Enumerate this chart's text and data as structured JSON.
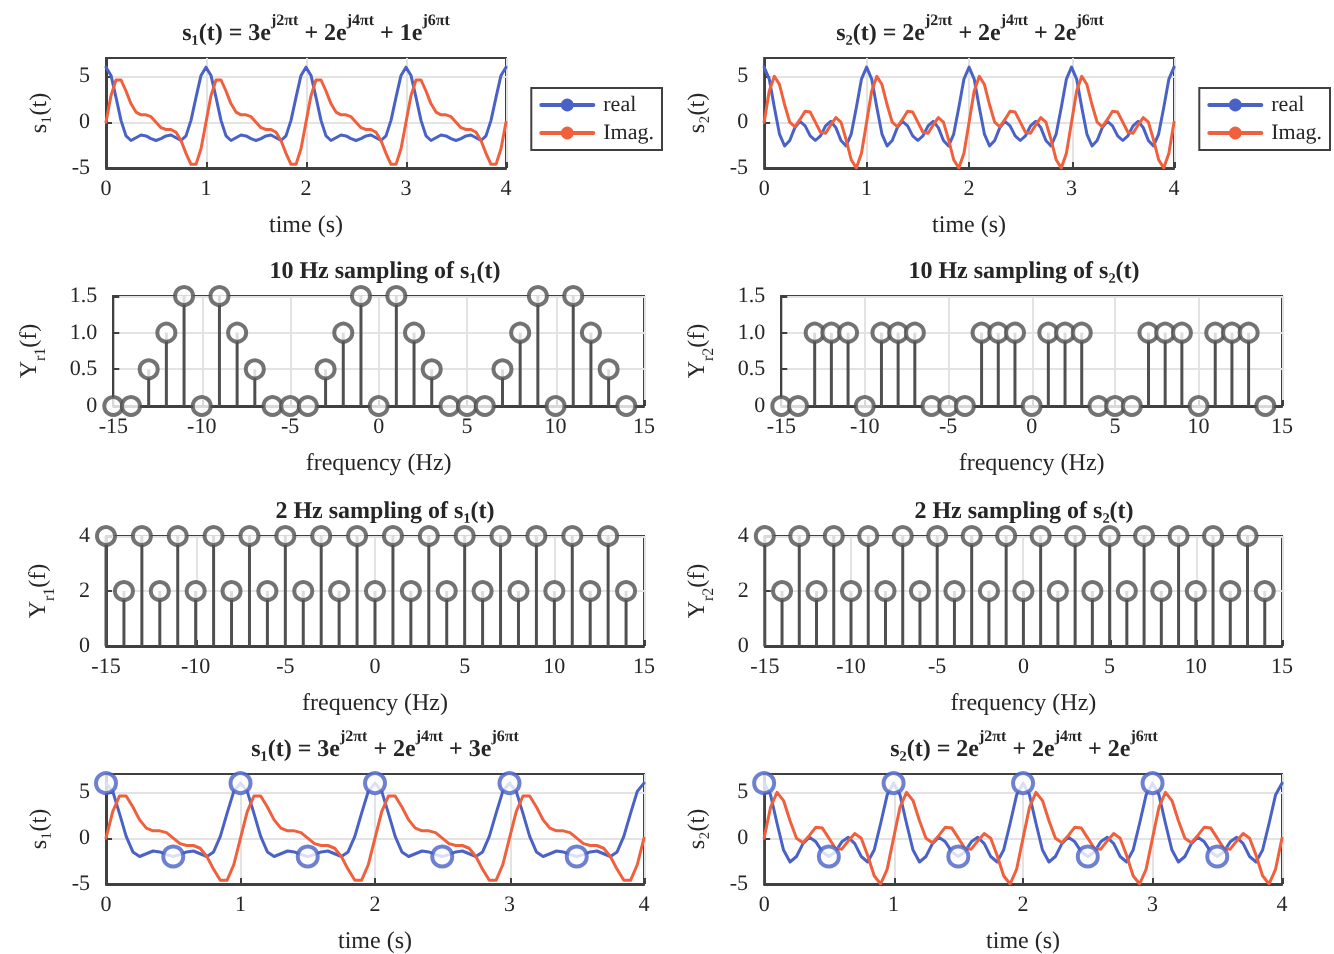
{
  "chart_data": [
    {
      "type": "line",
      "title": "s₁(t) = 3e$^{j2πt}$ + 2e$^{j4πt}$ + 1e$^{j6πt}$",
      "xlabel": "time (s)",
      "ylabel": "s₁(t)",
      "xlim": [
        0,
        4
      ],
      "xticks": [
        0,
        1,
        2,
        3,
        4
      ],
      "ylim": [
        -5,
        7
      ],
      "yticks": [
        -5,
        0,
        5
      ],
      "grid": true,
      "legend": "right",
      "marker": "none",
      "x": [
        0,
        0.05,
        0.1,
        0.15,
        0.2,
        0.25,
        0.3,
        0.35,
        0.4,
        0.45,
        0.5,
        0.55,
        0.6,
        0.65,
        0.7,
        0.75,
        0.8,
        0.85,
        0.9,
        0.95,
        1,
        1.05,
        1.1,
        1.15,
        1.2,
        1.25,
        1.3,
        1.35,
        1.4,
        1.45,
        1.5,
        1.55,
        1.6,
        1.65,
        1.7,
        1.75,
        1.8,
        1.85,
        1.9,
        1.95,
        2,
        2.05,
        2.1,
        2.15,
        2.2,
        2.25,
        2.3,
        2.35,
        2.4,
        2.45,
        2.5,
        2.55,
        2.6,
        2.65,
        2.7,
        2.75,
        2.8,
        2.85,
        2.9,
        2.95,
        3,
        3.05,
        3.1,
        3.15,
        3.2,
        3.25,
        3.3,
        3.35,
        3.4,
        3.45,
        3.5,
        3.55,
        3.6,
        3.65,
        3.7,
        3.75,
        3.8,
        3.85,
        3.9,
        3.95,
        4
      ],
      "series": [
        {
          "name": "real",
          "color": "#4a62c6",
          "values": [
            6,
            5.1,
            2.7,
            0.2,
            -1.5,
            -2,
            -1.7,
            -1.4,
            -1.5,
            -1.8,
            -2,
            -1.8,
            -1.5,
            -1.4,
            -1.7,
            -2,
            -1.5,
            0.2,
            2.7,
            5.1,
            6,
            5.1,
            2.7,
            0.2,
            -1.5,
            -2,
            -1.7,
            -1.4,
            -1.5,
            -1.8,
            -2,
            -1.8,
            -1.5,
            -1.4,
            -1.7,
            -2,
            -1.5,
            0.2,
            2.7,
            5.1,
            6,
            5.1,
            2.7,
            0.2,
            -1.5,
            -2,
            -1.7,
            -1.4,
            -1.5,
            -1.8,
            -2,
            -1.8,
            -1.5,
            -1.4,
            -1.7,
            -2,
            -1.5,
            0.2,
            2.7,
            5.1,
            6,
            5.1,
            2.7,
            0.2,
            -1.5,
            -2,
            -1.7,
            -1.4,
            -1.5,
            -1.8,
            -2,
            -1.8,
            -1.5,
            -1.4,
            -1.7,
            -2,
            -1.5,
            0.2,
            2.7,
            5.1,
            6
          ]
        },
        {
          "name": "Imag.",
          "color": "#f0603c",
          "values": [
            0,
            2.9,
            4.6,
            4.6,
            3.4,
            2,
            1.1,
            0.8,
            0.8,
            0.6,
            0,
            -0.6,
            -0.8,
            -0.8,
            -1.1,
            -2,
            -3.4,
            -4.6,
            -4.6,
            -2.9,
            0,
            2.9,
            4.6,
            4.6,
            3.4,
            2,
            1.1,
            0.8,
            0.8,
            0.6,
            0,
            -0.6,
            -0.8,
            -0.8,
            -1.1,
            -2,
            -3.4,
            -4.6,
            -4.6,
            -2.9,
            0,
            2.9,
            4.6,
            4.6,
            3.4,
            2,
            1.1,
            0.8,
            0.8,
            0.6,
            0,
            -0.6,
            -0.8,
            -0.8,
            -1.1,
            -2,
            -3.4,
            -4.6,
            -4.6,
            -2.9,
            0,
            2.9,
            4.6,
            4.6,
            3.4,
            2,
            1.1,
            0.8,
            0.8,
            0.6,
            0,
            -0.6,
            -0.8,
            -0.8,
            -1.1,
            -2,
            -3.4,
            -4.6,
            -4.6,
            -2.9,
            0
          ]
        }
      ]
    },
    {
      "type": "line",
      "title": "s₂(t) = 2e$^{j2πt}$ + 2e$^{j4πt}$ + 2e$^{j6πt}$",
      "xlabel": "time (s)",
      "ylabel": "s₂(t)",
      "xlim": [
        0,
        4
      ],
      "xticks": [
        0,
        1,
        2,
        3,
        4
      ],
      "ylim": [
        -5,
        7
      ],
      "yticks": [
        -5,
        0,
        5
      ],
      "grid": true,
      "legend": "right",
      "marker": "none",
      "x": [
        0,
        0.05,
        0.1,
        0.15,
        0.2,
        0.25,
        0.3,
        0.35,
        0.4,
        0.45,
        0.5,
        0.55,
        0.6,
        0.65,
        0.7,
        0.75,
        0.8,
        0.85,
        0.9,
        0.95,
        1,
        1.05,
        1.1,
        1.15,
        1.2,
        1.25,
        1.3,
        1.35,
        1.4,
        1.45,
        1.5,
        1.55,
        1.6,
        1.65,
        1.7,
        1.75,
        1.8,
        1.85,
        1.9,
        1.95,
        2,
        2.05,
        2.1,
        2.15,
        2.2,
        2.25,
        2.3,
        2.35,
        2.4,
        2.45,
        2.5,
        2.55,
        2.6,
        2.65,
        2.7,
        2.75,
        2.8,
        2.85,
        2.9,
        2.95,
        3,
        3.05,
        3.1,
        3.15,
        3.2,
        3.25,
        3.3,
        3.35,
        3.4,
        3.45,
        3.5,
        3.55,
        3.6,
        3.65,
        3.7,
        3.75,
        3.8,
        3.85,
        3.9,
        3.95,
        4
      ],
      "series": [
        {
          "name": "real",
          "color": "#4a62c6",
          "values": [
            6,
            4.7,
            1.6,
            -1.3,
            -2.6,
            -2,
            -0.6,
            0.1,
            -0.4,
            -1.5,
            -2,
            -1.5,
            -0.4,
            0.1,
            -0.6,
            -2,
            -2.6,
            -1.3,
            1.6,
            4.7,
            6,
            4.7,
            1.6,
            -1.3,
            -2.6,
            -2,
            -0.6,
            0.1,
            -0.4,
            -1.5,
            -2,
            -1.5,
            -0.4,
            0.1,
            -0.6,
            -2,
            -2.6,
            -1.3,
            1.6,
            4.7,
            6,
            4.7,
            1.6,
            -1.3,
            -2.6,
            -2,
            -0.6,
            0.1,
            -0.4,
            -1.5,
            -2,
            -1.5,
            -0.4,
            0.1,
            -0.6,
            -2,
            -2.6,
            -1.3,
            1.6,
            4.7,
            6,
            4.7,
            1.6,
            -1.3,
            -2.6,
            -2,
            -0.6,
            0.1,
            -0.4,
            -1.5,
            -2,
            -1.5,
            -0.4,
            0.1,
            -0.6,
            -2,
            -2.6,
            -1.3,
            1.6,
            4.7,
            6
          ]
        },
        {
          "name": "Imag.",
          "color": "#f0603c",
          "values": [
            0,
            3.4,
            5,
            4.1,
            1.9,
            0,
            -0.5,
            0.3,
            1.2,
            1.1,
            0,
            -1.1,
            -1.2,
            -0.3,
            0.5,
            0,
            -1.9,
            -4.1,
            -5,
            -3.4,
            0,
            3.4,
            5,
            4.1,
            1.9,
            0,
            -0.5,
            0.3,
            1.2,
            1.1,
            0,
            -1.1,
            -1.2,
            -0.3,
            0.5,
            0,
            -1.9,
            -4.1,
            -5,
            -3.4,
            0,
            3.4,
            5,
            4.1,
            1.9,
            0,
            -0.5,
            0.3,
            1.2,
            1.1,
            0,
            -1.1,
            -1.2,
            -0.3,
            0.5,
            0,
            -1.9,
            -4.1,
            -5,
            -3.4,
            0,
            3.4,
            5,
            4.1,
            1.9,
            0,
            -0.5,
            0.3,
            1.2,
            1.1,
            0,
            -1.1,
            -1.2,
            -0.3,
            0.5,
            0,
            -1.9,
            -4.1,
            -5,
            -3.4,
            0
          ]
        }
      ]
    },
    {
      "type": "lollipop",
      "title": "10 Hz sampling of s₁(t)",
      "xlabel": "frequency (Hz)",
      "ylabel": "Y$_{r1}$(f)",
      "xlim": [
        -15,
        15
      ],
      "xticks": [
        -15,
        -10,
        -5,
        0,
        5,
        10,
        15
      ],
      "ylim": [
        0,
        1.5
      ],
      "yticks": [
        0,
        0.5,
        {
          "value": 1,
          "label": "1.0"
        },
        1.5
      ],
      "grid": true,
      "marker": "circle",
      "color": "#505050",
      "x": [
        -15,
        -14,
        -13,
        -12,
        -11,
        -10,
        -9,
        -8,
        -7,
        -6,
        -5,
        -4,
        -3,
        -2,
        -1,
        0,
        1,
        2,
        3,
        4,
        5,
        6,
        7,
        8,
        9,
        10,
        11,
        12,
        13,
        14
      ],
      "values": [
        0,
        0,
        0.5,
        1,
        1.5,
        0,
        1.5,
        1,
        0.5,
        0,
        0,
        0,
        0.5,
        1,
        1.5,
        0,
        1.5,
        1,
        0.5,
        0,
        0,
        0,
        0.5,
        1,
        1.5,
        0,
        1.5,
        1,
        0.5,
        0
      ]
    },
    {
      "type": "lollipop",
      "title": "10 Hz sampling of s₂(t)",
      "xlabel": "frequency (Hz)",
      "ylabel": "Y$_{r2}$(f)",
      "xlim": [
        -15,
        15
      ],
      "xticks": [
        -15,
        -10,
        -5,
        0,
        5,
        10,
        15
      ],
      "ylim": [
        0,
        1.5
      ],
      "yticks": [
        0,
        0.5,
        {
          "value": 1,
          "label": "1.0"
        },
        1.5
      ],
      "grid": true,
      "marker": "circle",
      "color": "#505050",
      "x": [
        -15,
        -14,
        -13,
        -12,
        -11,
        -10,
        -9,
        -8,
        -7,
        -6,
        -5,
        -4,
        -3,
        -2,
        -1,
        0,
        1,
        2,
        3,
        4,
        5,
        6,
        7,
        8,
        9,
        10,
        11,
        12,
        13,
        14
      ],
      "values": [
        0,
        0,
        1,
        1,
        1,
        0,
        1,
        1,
        1,
        0,
        0,
        0,
        1,
        1,
        1,
        0,
        1,
        1,
        1,
        0,
        0,
        0,
        1,
        1,
        1,
        0,
        1,
        1,
        1,
        0
      ]
    },
    {
      "type": "lollipop",
      "title": "2 Hz sampling of s₁(t)",
      "xlabel": "frequency (Hz)",
      "ylabel": "Y$_{r1}$(f)",
      "xlim": [
        -15,
        15
      ],
      "xticks": [
        -15,
        -10,
        -5,
        0,
        5,
        10,
        15
      ],
      "ylim": [
        0,
        4
      ],
      "yticks": [
        0,
        2,
        4
      ],
      "grid": true,
      "marker": "circle",
      "color": "#505050",
      "x": [
        -15,
        -14,
        -13,
        -12,
        -11,
        -10,
        -9,
        -8,
        -7,
        -6,
        -5,
        -4,
        -3,
        -2,
        -1,
        0,
        1,
        2,
        3,
        4,
        5,
        6,
        7,
        8,
        9,
        10,
        11,
        12,
        13,
        14
      ],
      "values": [
        4,
        2,
        4,
        2,
        4,
        2,
        4,
        2,
        4,
        2,
        4,
        2,
        4,
        2,
        4,
        2,
        4,
        2,
        4,
        2,
        4,
        2,
        4,
        2,
        4,
        2,
        4,
        2,
        4,
        2
      ]
    },
    {
      "type": "lollipop",
      "title": "2 Hz sampling of s₂(t)",
      "xlabel": "frequency (Hz)",
      "ylabel": "Y$_{r2}$(f)",
      "xlim": [
        -15,
        15
      ],
      "xticks": [
        -15,
        -10,
        -5,
        0,
        5,
        10,
        15
      ],
      "ylim": [
        0,
        4
      ],
      "yticks": [
        0,
        2,
        4
      ],
      "grid": true,
      "marker": "circle",
      "color": "#505050",
      "x": [
        -15,
        -14,
        -13,
        -12,
        -11,
        -10,
        -9,
        -8,
        -7,
        -6,
        -5,
        -4,
        -3,
        -2,
        -1,
        0,
        1,
        2,
        3,
        4,
        5,
        6,
        7,
        8,
        9,
        10,
        11,
        12,
        13,
        14
      ],
      "values": [
        4,
        2,
        4,
        2,
        4,
        2,
        4,
        2,
        4,
        2,
        4,
        2,
        4,
        2,
        4,
        2,
        4,
        2,
        4,
        2,
        4,
        2,
        4,
        2,
        4,
        2,
        4,
        2,
        4,
        2
      ]
    },
    {
      "type": "line",
      "title": "s₁(t) = 3e$^{j2πt}$ + 2e$^{j4πt}$ + 3e$^{j6πt}$",
      "xlabel": "time (s)",
      "ylabel": "s₁(t)",
      "xlim": [
        0,
        4
      ],
      "xticks": [
        0,
        1,
        2,
        3,
        4
      ],
      "ylim": [
        -5,
        7
      ],
      "yticks": [
        -5,
        0,
        5
      ],
      "grid": true,
      "marker": "none",
      "x": [
        0,
        0.05,
        0.1,
        0.15,
        0.2,
        0.25,
        0.3,
        0.35,
        0.4,
        0.45,
        0.5,
        0.55,
        0.6,
        0.65,
        0.7,
        0.75,
        0.8,
        0.85,
        0.9,
        0.95,
        1,
        1.05,
        1.1,
        1.15,
        1.2,
        1.25,
        1.3,
        1.35,
        1.4,
        1.45,
        1.5,
        1.55,
        1.6,
        1.65,
        1.7,
        1.75,
        1.8,
        1.85,
        1.9,
        1.95,
        2,
        2.05,
        2.1,
        2.15,
        2.2,
        2.25,
        2.3,
        2.35,
        2.4,
        2.45,
        2.5,
        2.55,
        2.6,
        2.65,
        2.7,
        2.75,
        2.8,
        2.85,
        2.9,
        2.95,
        3,
        3.05,
        3.1,
        3.15,
        3.2,
        3.25,
        3.3,
        3.35,
        3.4,
        3.45,
        3.5,
        3.55,
        3.6,
        3.65,
        3.7,
        3.75,
        3.8,
        3.85,
        3.9,
        3.95,
        4
      ],
      "series": [
        {
          "color": "#4a62c6",
          "values": [
            6,
            5.1,
            2.7,
            0.2,
            -1.5,
            -2,
            -1.7,
            -1.4,
            -1.5,
            -1.8,
            -2,
            -1.8,
            -1.5,
            -1.4,
            -1.7,
            -2,
            -1.5,
            0.2,
            2.7,
            5.1,
            6,
            5.1,
            2.7,
            0.2,
            -1.5,
            -2,
            -1.7,
            -1.4,
            -1.5,
            -1.8,
            -2,
            -1.8,
            -1.5,
            -1.4,
            -1.7,
            -2,
            -1.5,
            0.2,
            2.7,
            5.1,
            6,
            5.1,
            2.7,
            0.2,
            -1.5,
            -2,
            -1.7,
            -1.4,
            -1.5,
            -1.8,
            -2,
            -1.8,
            -1.5,
            -1.4,
            -1.7,
            -2,
            -1.5,
            0.2,
            2.7,
            5.1,
            6,
            5.1,
            2.7,
            0.2,
            -1.5,
            -2,
            -1.7,
            -1.4,
            -1.5,
            -1.8,
            -2,
            -1.8,
            -1.5,
            -1.4,
            -1.7,
            -2,
            -1.5,
            0.2,
            2.7,
            5.1,
            6
          ]
        },
        {
          "color": "#f0603c",
          "values": [
            0,
            2.9,
            4.6,
            4.6,
            3.4,
            2,
            1.1,
            0.8,
            0.8,
            0.6,
            0,
            -0.6,
            -0.8,
            -0.8,
            -1.1,
            -2,
            -3.4,
            -4.6,
            -4.6,
            -2.9,
            0,
            2.9,
            4.6,
            4.6,
            3.4,
            2,
            1.1,
            0.8,
            0.8,
            0.6,
            0,
            -0.6,
            -0.8,
            -0.8,
            -1.1,
            -2,
            -3.4,
            -4.6,
            -4.6,
            -2.9,
            0,
            2.9,
            4.6,
            4.6,
            3.4,
            2,
            1.1,
            0.8,
            0.8,
            0.6,
            0,
            -0.6,
            -0.8,
            -0.8,
            -1.1,
            -2,
            -3.4,
            -4.6,
            -4.6,
            -2.9,
            0,
            2.9,
            4.6,
            4.6,
            3.4,
            2,
            1.1,
            0.8,
            0.8,
            0.6,
            0,
            -0.6,
            -0.8,
            -0.8,
            -1.1,
            -2,
            -3.4,
            -4.6,
            -4.6,
            -2.9,
            0
          ]
        },
        {
          "type": "scatter",
          "marker": "circle",
          "color": "#4a62c6",
          "x": [
            0,
            0.5,
            1,
            1.5,
            2,
            2.5,
            3,
            3.5
          ],
          "values": [
            6,
            -2,
            6,
            -2,
            6,
            -2,
            6,
            -2
          ]
        }
      ]
    },
    {
      "type": "line",
      "title": "s₂(t) = 2e$^{j2πt}$ + 2e$^{j4πt}$ + 2e$^{j6πt}$",
      "xlabel": "time (s)",
      "ylabel": "s₂(t)",
      "xlim": [
        0,
        4
      ],
      "xticks": [
        0,
        1,
        2,
        3,
        4
      ],
      "ylim": [
        -5,
        7
      ],
      "yticks": [
        -5,
        0,
        5
      ],
      "grid": true,
      "marker": "none",
      "x": [
        0,
        0.05,
        0.1,
        0.15,
        0.2,
        0.25,
        0.3,
        0.35,
        0.4,
        0.45,
        0.5,
        0.55,
        0.6,
        0.65,
        0.7,
        0.75,
        0.8,
        0.85,
        0.9,
        0.95,
        1,
        1.05,
        1.1,
        1.15,
        1.2,
        1.25,
        1.3,
        1.35,
        1.4,
        1.45,
        1.5,
        1.55,
        1.6,
        1.65,
        1.7,
        1.75,
        1.8,
        1.85,
        1.9,
        1.95,
        2,
        2.05,
        2.1,
        2.15,
        2.2,
        2.25,
        2.3,
        2.35,
        2.4,
        2.45,
        2.5,
        2.55,
        2.6,
        2.65,
        2.7,
        2.75,
        2.8,
        2.85,
        2.9,
        2.95,
        3,
        3.05,
        3.1,
        3.15,
        3.2,
        3.25,
        3.3,
        3.35,
        3.4,
        3.45,
        3.5,
        3.55,
        3.6,
        3.65,
        3.7,
        3.75,
        3.8,
        3.85,
        3.9,
        3.95,
        4
      ],
      "series": [
        {
          "color": "#4a62c6",
          "values": [
            6,
            4.7,
            1.6,
            -1.3,
            -2.6,
            -2,
            -0.6,
            0.1,
            -0.4,
            -1.5,
            -2,
            -1.5,
            -0.4,
            0.1,
            -0.6,
            -2,
            -2.6,
            -1.3,
            1.6,
            4.7,
            6,
            4.7,
            1.6,
            -1.3,
            -2.6,
            -2,
            -0.6,
            0.1,
            -0.4,
            -1.5,
            -2,
            -1.5,
            -0.4,
            0.1,
            -0.6,
            -2,
            -2.6,
            -1.3,
            1.6,
            4.7,
            6,
            4.7,
            1.6,
            -1.3,
            -2.6,
            -2,
            -0.6,
            0.1,
            -0.4,
            -1.5,
            -2,
            -1.5,
            -0.4,
            0.1,
            -0.6,
            -2,
            -2.6,
            -1.3,
            1.6,
            4.7,
            6,
            4.7,
            1.6,
            -1.3,
            -2.6,
            -2,
            -0.6,
            0.1,
            -0.4,
            -1.5,
            -2,
            -1.5,
            -0.4,
            0.1,
            -0.6,
            -2,
            -2.6,
            -1.3,
            1.6,
            4.7,
            6
          ]
        },
        {
          "color": "#f0603c",
          "values": [
            0,
            3.4,
            5,
            4.1,
            1.9,
            0,
            -0.5,
            0.3,
            1.2,
            1.1,
            0,
            -1.1,
            -1.2,
            -0.3,
            0.5,
            0,
            -1.9,
            -4.1,
            -5,
            -3.4,
            0,
            3.4,
            5,
            4.1,
            1.9,
            0,
            -0.5,
            0.3,
            1.2,
            1.1,
            0,
            -1.1,
            -1.2,
            -0.3,
            0.5,
            0,
            -1.9,
            -4.1,
            -5,
            -3.4,
            0,
            3.4,
            5,
            4.1,
            1.9,
            0,
            -0.5,
            0.3,
            1.2,
            1.1,
            0,
            -1.1,
            -1.2,
            -0.3,
            0.5,
            0,
            -1.9,
            -4.1,
            -5,
            -3.4,
            0,
            3.4,
            5,
            4.1,
            1.9,
            0,
            -0.5,
            0.3,
            1.2,
            1.1,
            0,
            -1.1,
            -1.2,
            -0.3,
            0.5,
            0,
            -1.9,
            -4.1,
            -5,
            -3.4,
            0
          ]
        },
        {
          "type": "scatter",
          "marker": "circle",
          "color": "#4a62c6",
          "x": [
            0,
            0.5,
            1,
            1.5,
            2,
            2.5,
            3,
            3.5
          ],
          "values": [
            6,
            -2,
            6,
            -2,
            6,
            -2,
            6,
            -2
          ]
        }
      ]
    }
  ]
}
